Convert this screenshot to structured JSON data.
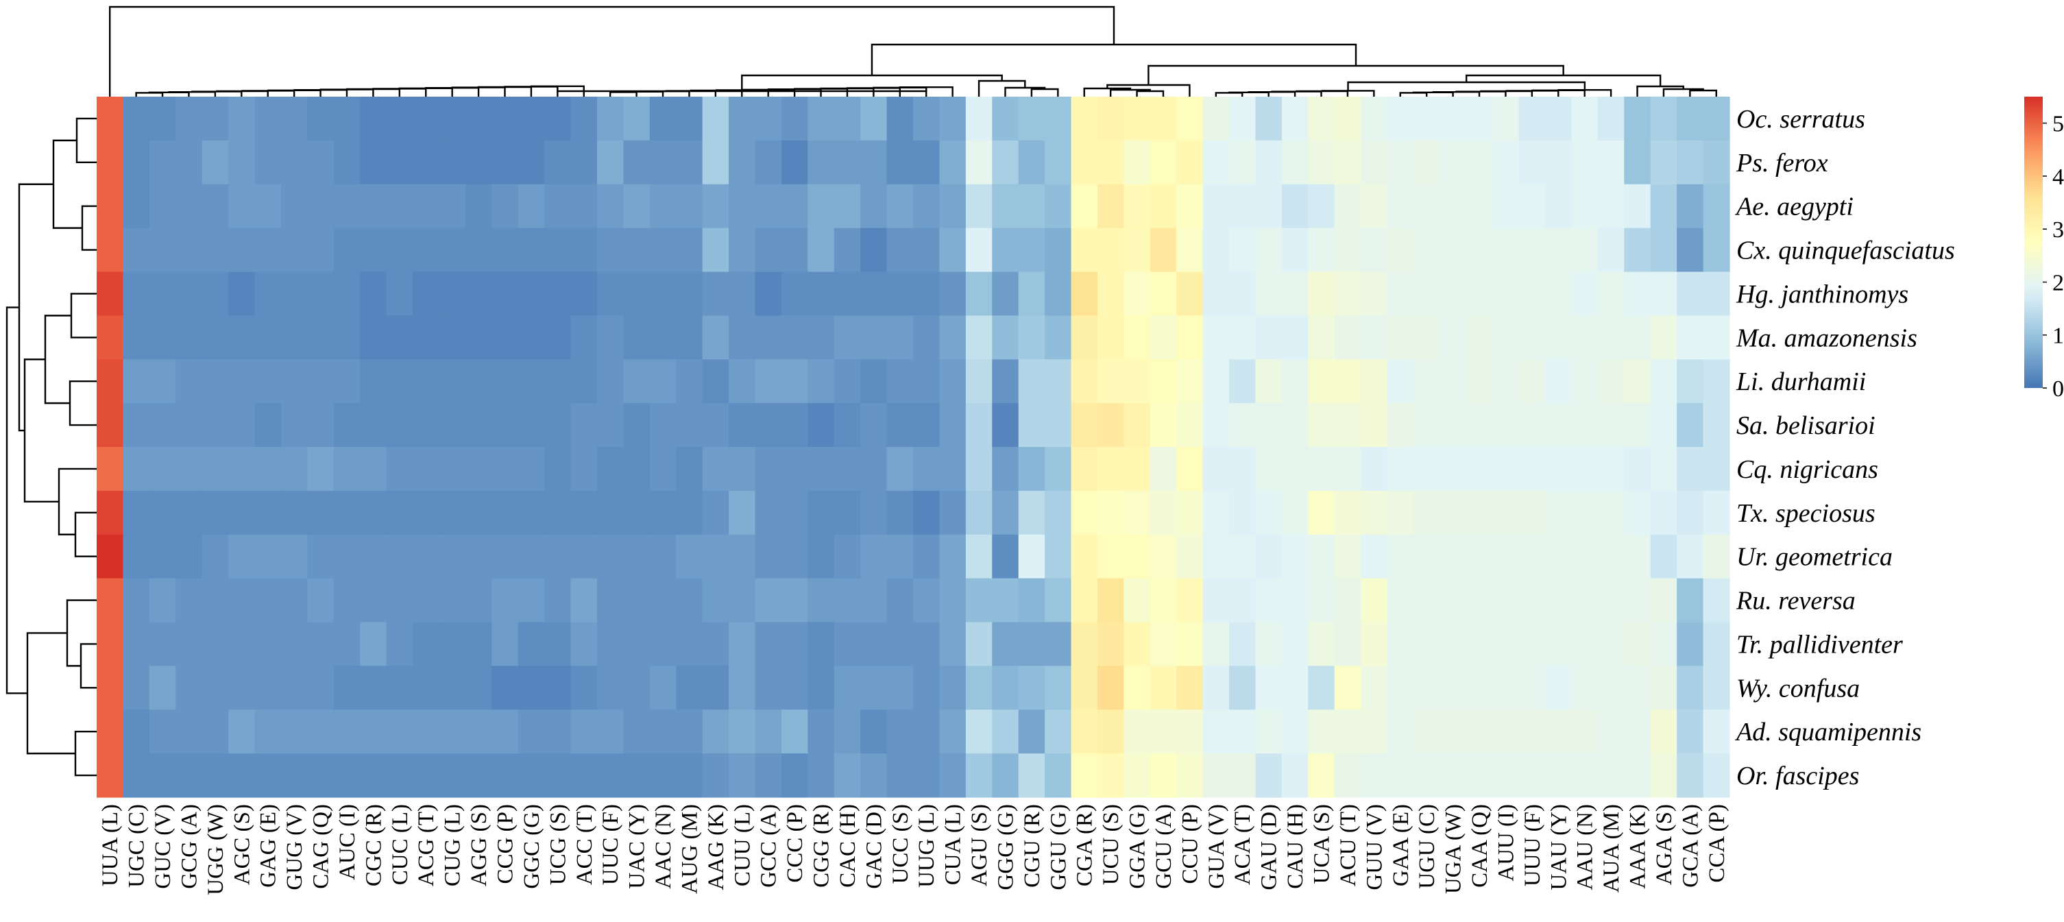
{
  "chart_data": {
    "type": "heatmap",
    "title": "",
    "xlabel": "",
    "ylabel": "",
    "columns": [
      "UUA (L)",
      "UGC (C)",
      "GUC (V)",
      "GCG (A)",
      "UGG (W)",
      "AGC (S)",
      "GAG (E)",
      "GUG (V)",
      "CAG (Q)",
      "AUC (I)",
      "CGC (R)",
      "CUC (L)",
      "ACG (T)",
      "CUG (L)",
      "AGG (S)",
      "CCG (P)",
      "GGC (G)",
      "UCG (S)",
      "ACC (T)",
      "UUC (F)",
      "UAC (Y)",
      "AAC (N)",
      "AUG (M)",
      "AAG (K)",
      "CUU (L)",
      "GCC (A)",
      "CCC (P)",
      "CGG (R)",
      "CAC (H)",
      "GAC (D)",
      "UCC (S)",
      "UUG (L)",
      "CUA (L)",
      "AGU (S)",
      "GGG (G)",
      "CGU (R)",
      "GGU (G)",
      "CGA (R)",
      "UCU (S)",
      "GGA (G)",
      "GCU (A)",
      "CCU (P)",
      "GUA (V)",
      "ACA (T)",
      "GAU (D)",
      "CAU (H)",
      "UCA (S)",
      "ACU (T)",
      "GUU (V)",
      "GAA (E)",
      "UGU (C)",
      "UGA (W)",
      "CAA (Q)",
      "AUU (I)",
      "UUU (F)",
      "UAU (Y)",
      "AAU (N)",
      "AUA (M)",
      "AAA (K)",
      "AGA (S)",
      "GCA (A)",
      "CCA (P)"
    ],
    "species": [
      "Oc. serratus",
      "Ps. ferox",
      "Ae. aegypti",
      "Cx. quinquefasciatus",
      "Hg. janthinomys",
      "Ma. amazonensis",
      "Li. durhamii",
      "Sa. belisarioi",
      "Cq. nigricans",
      "Tx. speciosus",
      "Ur. geometrica",
      "Ru. reversa",
      "Tr. pallidiventer",
      "Wy. confusa",
      "Ad. squamipennis",
      "Or. fascipes"
    ],
    "values": [
      [
        5.0,
        0.3,
        0.3,
        0.4,
        0.4,
        0.5,
        0.4,
        0.4,
        0.3,
        0.3,
        0.2,
        0.2,
        0.2,
        0.2,
        0.2,
        0.2,
        0.2,
        0.2,
        0.3,
        0.6,
        0.7,
        0.3,
        0.3,
        1.2,
        0.5,
        0.5,
        0.4,
        0.6,
        0.6,
        0.8,
        0.3,
        0.5,
        0.6,
        1.8,
        0.9,
        1.0,
        1.0,
        3.0,
        3.1,
        3.0,
        3.0,
        2.8,
        2.1,
        1.9,
        1.4,
        1.9,
        2.3,
        2.4,
        2.0,
        1.9,
        1.9,
        1.9,
        1.9,
        2.0,
        1.7,
        1.7,
        1.9,
        1.7,
        1.0,
        1.2,
        1.0,
        1.0
      ],
      [
        5.0,
        0.3,
        0.4,
        0.4,
        0.6,
        0.5,
        0.4,
        0.4,
        0.4,
        0.3,
        0.2,
        0.2,
        0.2,
        0.2,
        0.2,
        0.2,
        0.2,
        0.3,
        0.3,
        0.7,
        0.4,
        0.4,
        0.4,
        1.2,
        0.5,
        0.4,
        0.2,
        0.5,
        0.5,
        0.5,
        0.3,
        0.3,
        0.7,
        2.0,
        1.2,
        0.8,
        1.0,
        3.0,
        3.0,
        2.5,
        2.8,
        3.0,
        1.9,
        2.0,
        1.8,
        2.0,
        2.2,
        2.3,
        2.1,
        2.0,
        2.1,
        2.0,
        2.0,
        1.9,
        1.8,
        1.8,
        1.9,
        1.9,
        1.0,
        1.3,
        1.2,
        1.1
      ],
      [
        5.0,
        0.3,
        0.4,
        0.4,
        0.4,
        0.5,
        0.5,
        0.4,
        0.4,
        0.4,
        0.4,
        0.4,
        0.4,
        0.4,
        0.3,
        0.4,
        0.5,
        0.4,
        0.4,
        0.5,
        0.6,
        0.5,
        0.5,
        0.6,
        0.5,
        0.5,
        0.5,
        0.7,
        0.7,
        0.5,
        0.6,
        0.5,
        0.6,
        1.5,
        1.0,
        1.0,
        0.9,
        2.8,
        3.3,
        2.9,
        3.0,
        2.7,
        1.8,
        1.8,
        1.8,
        1.6,
        1.7,
        2.1,
        2.2,
        2.0,
        2.0,
        2.0,
        2.0,
        1.9,
        1.9,
        1.8,
        1.9,
        1.9,
        1.8,
        1.2,
        0.7,
        1.0
      ],
      [
        5.0,
        0.4,
        0.4,
        0.4,
        0.4,
        0.4,
        0.4,
        0.4,
        0.4,
        0.3,
        0.3,
        0.3,
        0.3,
        0.3,
        0.3,
        0.3,
        0.3,
        0.3,
        0.3,
        0.4,
        0.4,
        0.4,
        0.4,
        0.9,
        0.5,
        0.4,
        0.4,
        0.7,
        0.4,
        0.2,
        0.4,
        0.4,
        0.7,
        1.8,
        0.8,
        0.8,
        0.7,
        3.0,
        3.0,
        2.9,
        3.4,
        2.6,
        1.8,
        1.9,
        2.0,
        1.8,
        2.0,
        2.1,
        2.0,
        2.1,
        2.0,
        2.0,
        2.0,
        2.0,
        2.0,
        2.0,
        2.0,
        1.8,
        1.3,
        1.2,
        0.5,
        1.0
      ],
      [
        5.3,
        0.3,
        0.3,
        0.3,
        0.3,
        0.2,
        0.3,
        0.3,
        0.3,
        0.3,
        0.2,
        0.3,
        0.2,
        0.2,
        0.2,
        0.2,
        0.2,
        0.2,
        0.2,
        0.3,
        0.3,
        0.3,
        0.3,
        0.4,
        0.4,
        0.2,
        0.3,
        0.3,
        0.3,
        0.3,
        0.3,
        0.3,
        0.4,
        1.0,
        0.5,
        1.0,
        0.7,
        3.6,
        3.0,
        2.6,
        2.8,
        3.2,
        1.8,
        1.8,
        2.0,
        2.0,
        2.4,
        2.3,
        2.2,
        2.0,
        2.0,
        2.0,
        2.0,
        2.0,
        2.0,
        2.0,
        1.9,
        2.0,
        1.9,
        1.9,
        1.6,
        1.6
      ],
      [
        5.1,
        0.3,
        0.3,
        0.3,
        0.3,
        0.3,
        0.3,
        0.3,
        0.3,
        0.3,
        0.2,
        0.2,
        0.2,
        0.2,
        0.2,
        0.2,
        0.2,
        0.2,
        0.3,
        0.4,
        0.3,
        0.3,
        0.3,
        0.6,
        0.4,
        0.4,
        0.4,
        0.4,
        0.5,
        0.5,
        0.5,
        0.4,
        0.6,
        1.5,
        0.9,
        1.1,
        0.9,
        3.2,
        3.0,
        2.8,
        2.5,
        2.8,
        1.9,
        1.9,
        1.8,
        1.8,
        2.3,
        2.1,
        2.0,
        2.1,
        2.1,
        2.0,
        2.1,
        2.0,
        2.0,
        2.0,
        2.0,
        2.0,
        2.0,
        2.2,
        1.9,
        1.9
      ],
      [
        5.2,
        0.5,
        0.5,
        0.4,
        0.4,
        0.4,
        0.4,
        0.4,
        0.4,
        0.4,
        0.3,
        0.3,
        0.3,
        0.3,
        0.3,
        0.3,
        0.3,
        0.3,
        0.3,
        0.4,
        0.5,
        0.5,
        0.4,
        0.3,
        0.5,
        0.6,
        0.6,
        0.5,
        0.4,
        0.3,
        0.4,
        0.4,
        0.5,
        1.4,
        0.4,
        1.3,
        1.3,
        3.1,
        2.9,
        2.9,
        2.8,
        2.6,
        1.9,
        1.6,
        2.2,
        2.0,
        2.5,
        2.5,
        2.4,
        1.9,
        2.0,
        2.0,
        2.1,
        2.0,
        2.1,
        1.9,
        2.0,
        2.1,
        2.2,
        1.9,
        1.5,
        1.6
      ],
      [
        5.2,
        0.4,
        0.4,
        0.4,
        0.4,
        0.4,
        0.3,
        0.4,
        0.4,
        0.3,
        0.3,
        0.3,
        0.3,
        0.3,
        0.3,
        0.3,
        0.3,
        0.3,
        0.4,
        0.4,
        0.3,
        0.4,
        0.4,
        0.4,
        0.3,
        0.3,
        0.3,
        0.2,
        0.3,
        0.4,
        0.3,
        0.3,
        0.5,
        1.3,
        0.2,
        1.3,
        1.3,
        3.3,
        3.4,
        3.1,
        2.7,
        2.5,
        1.9,
        2.0,
        2.0,
        2.0,
        2.3,
        2.3,
        2.4,
        2.1,
        2.0,
        2.0,
        2.0,
        2.0,
        2.0,
        2.0,
        2.0,
        2.0,
        2.0,
        1.9,
        1.2,
        1.6
      ],
      [
        4.9,
        0.5,
        0.5,
        0.5,
        0.5,
        0.5,
        0.5,
        0.5,
        0.6,
        0.5,
        0.5,
        0.4,
        0.4,
        0.4,
        0.4,
        0.4,
        0.4,
        0.3,
        0.4,
        0.3,
        0.3,
        0.4,
        0.3,
        0.5,
        0.5,
        0.4,
        0.4,
        0.4,
        0.4,
        0.4,
        0.6,
        0.5,
        0.5,
        1.3,
        0.5,
        0.8,
        1.0,
        3.1,
        3.0,
        3.0,
        2.2,
        2.8,
        1.8,
        1.8,
        2.0,
        2.0,
        2.0,
        2.0,
        1.8,
        1.9,
        1.9,
        1.9,
        1.9,
        1.9,
        1.9,
        1.9,
        1.9,
        1.9,
        1.8,
        1.9,
        1.6,
        1.6
      ],
      [
        5.3,
        0.3,
        0.3,
        0.3,
        0.3,
        0.3,
        0.3,
        0.3,
        0.3,
        0.3,
        0.3,
        0.3,
        0.3,
        0.3,
        0.3,
        0.3,
        0.3,
        0.3,
        0.3,
        0.3,
        0.3,
        0.3,
        0.3,
        0.4,
        0.7,
        0.4,
        0.4,
        0.3,
        0.3,
        0.4,
        0.3,
        0.2,
        0.4,
        1.2,
        0.6,
        1.4,
        1.2,
        2.8,
        2.7,
        2.6,
        2.4,
        2.5,
        1.9,
        1.8,
        1.9,
        2.0,
        2.6,
        2.4,
        2.3,
        2.2,
        2.1,
        2.1,
        2.1,
        2.1,
        2.1,
        2.0,
        2.0,
        2.0,
        1.9,
        1.8,
        1.7,
        1.8
      ],
      [
        5.5,
        0.3,
        0.3,
        0.3,
        0.4,
        0.5,
        0.5,
        0.5,
        0.4,
        0.4,
        0.4,
        0.4,
        0.4,
        0.4,
        0.4,
        0.4,
        0.4,
        0.4,
        0.4,
        0.4,
        0.4,
        0.4,
        0.5,
        0.5,
        0.5,
        0.4,
        0.4,
        0.3,
        0.4,
        0.5,
        0.5,
        0.4,
        0.6,
        1.5,
        0.3,
        1.8,
        1.2,
        3.0,
        2.8,
        2.8,
        2.6,
        2.4,
        1.9,
        1.9,
        1.8,
        1.9,
        2.0,
        2.2,
        1.9,
        2.0,
        2.0,
        2.0,
        2.0,
        2.0,
        2.0,
        2.0,
        2.0,
        2.0,
        2.0,
        1.6,
        1.8,
        2.1
      ],
      [
        5.0,
        0.4,
        0.5,
        0.4,
        0.4,
        0.4,
        0.4,
        0.4,
        0.5,
        0.4,
        0.4,
        0.4,
        0.4,
        0.4,
        0.4,
        0.5,
        0.5,
        0.4,
        0.6,
        0.4,
        0.4,
        0.4,
        0.4,
        0.5,
        0.5,
        0.6,
        0.6,
        0.5,
        0.5,
        0.5,
        0.4,
        0.5,
        0.6,
        0.9,
        0.9,
        0.8,
        1.0,
        3.0,
        3.5,
        2.5,
        2.7,
        2.9,
        1.8,
        1.8,
        1.9,
        1.9,
        2.0,
        2.1,
        2.5,
        2.0,
        2.0,
        2.0,
        2.0,
        2.0,
        2.0,
        2.0,
        2.0,
        2.0,
        2.0,
        2.1,
        1.0,
        1.7
      ],
      [
        5.0,
        0.4,
        0.4,
        0.4,
        0.4,
        0.4,
        0.4,
        0.4,
        0.4,
        0.4,
        0.6,
        0.4,
        0.3,
        0.3,
        0.3,
        0.5,
        0.3,
        0.3,
        0.5,
        0.4,
        0.4,
        0.4,
        0.4,
        0.4,
        0.6,
        0.4,
        0.4,
        0.3,
        0.4,
        0.4,
        0.4,
        0.4,
        0.6,
        1.3,
        0.6,
        0.6,
        0.6,
        3.2,
        3.4,
        3.0,
        2.6,
        2.7,
        2.0,
        1.7,
        2.0,
        1.9,
        2.2,
        2.1,
        2.4,
        2.0,
        2.0,
        2.0,
        2.0,
        2.0,
        2.0,
        2.0,
        2.0,
        2.0,
        2.1,
        2.0,
        0.9,
        1.6
      ],
      [
        5.0,
        0.4,
        0.6,
        0.4,
        0.4,
        0.4,
        0.4,
        0.4,
        0.4,
        0.3,
        0.3,
        0.3,
        0.3,
        0.3,
        0.3,
        0.2,
        0.2,
        0.2,
        0.3,
        0.4,
        0.4,
        0.5,
        0.3,
        0.3,
        0.6,
        0.4,
        0.4,
        0.3,
        0.5,
        0.5,
        0.5,
        0.4,
        0.5,
        1.0,
        0.8,
        0.9,
        1.0,
        3.2,
        3.7,
        2.8,
        3.0,
        3.3,
        1.8,
        1.4,
        1.9,
        1.9,
        1.5,
        2.6,
        2.2,
        2.0,
        2.0,
        2.0,
        2.0,
        2.0,
        2.0,
        1.9,
        2.0,
        2.0,
        2.0,
        2.1,
        1.2,
        1.6
      ],
      [
        5.0,
        0.3,
        0.4,
        0.4,
        0.4,
        0.6,
        0.5,
        0.5,
        0.5,
        0.5,
        0.5,
        0.5,
        0.5,
        0.5,
        0.5,
        0.5,
        0.4,
        0.4,
        0.5,
        0.5,
        0.4,
        0.4,
        0.4,
        0.6,
        0.7,
        0.6,
        0.8,
        0.4,
        0.5,
        0.3,
        0.4,
        0.4,
        0.6,
        1.5,
        1.2,
        0.6,
        1.2,
        3.1,
        3.2,
        2.4,
        2.4,
        2.4,
        1.9,
        1.9,
        2.0,
        1.9,
        2.2,
        2.2,
        2.2,
        2.0,
        2.1,
        2.1,
        2.1,
        2.1,
        2.1,
        2.1,
        2.1,
        2.0,
        2.0,
        2.4,
        1.3,
        1.8
      ],
      [
        5.0,
        0.3,
        0.3,
        0.3,
        0.3,
        0.3,
        0.3,
        0.3,
        0.3,
        0.3,
        0.3,
        0.3,
        0.3,
        0.3,
        0.3,
        0.3,
        0.3,
        0.3,
        0.3,
        0.3,
        0.3,
        0.3,
        0.3,
        0.4,
        0.5,
        0.4,
        0.3,
        0.4,
        0.6,
        0.5,
        0.4,
        0.4,
        0.5,
        1.1,
        0.8,
        1.4,
        1.0,
        2.8,
        2.9,
        2.5,
        2.7,
        2.5,
        2.1,
        2.1,
        1.6,
        1.8,
        2.6,
        2.1,
        2.0,
        2.0,
        2.0,
        2.0,
        2.0,
        2.0,
        2.0,
        2.0,
        2.0,
        2.0,
        2.0,
        2.3,
        1.4,
        1.7
      ]
    ],
    "highlighted_species": "Or. fascipes",
    "colorbar": {
      "min": 0,
      "max": 5.5,
      "ticks": [
        "0",
        "1",
        "2",
        "3",
        "4",
        "5"
      ],
      "position": "top-right"
    },
    "colorscale": [
      "#4575b4",
      "#91bfdb",
      "#e0f3f8",
      "#ffffbf",
      "#fee090",
      "#fc8d59",
      "#d73027"
    ],
    "highlight_color": "#ff0000"
  }
}
